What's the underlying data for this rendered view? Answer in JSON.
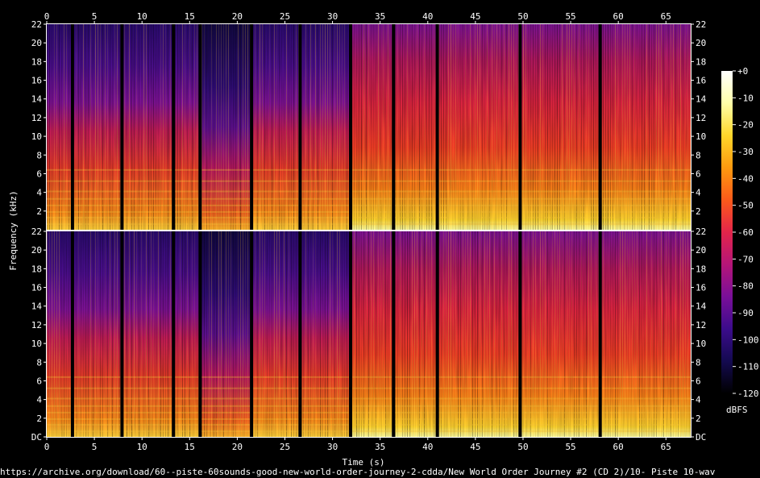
{
  "chart_data": {
    "type": "heatmap",
    "subtype": "spectrogram",
    "channels": 2,
    "xlabel": "Time (s)",
    "ylabel": "Frequency (kHz)",
    "x_ticks": [
      0,
      5,
      10,
      15,
      20,
      25,
      30,
      35,
      40,
      45,
      50,
      55,
      60,
      65
    ],
    "xlim": [
      0,
      67.6
    ],
    "y_ticks": [
      "DC",
      2,
      4,
      6,
      8,
      10,
      12,
      14,
      16,
      18,
      20,
      22
    ],
    "ylim": [
      0,
      22
    ],
    "colorbar": {
      "label": "dBFS",
      "ticks": [
        "+0",
        "-10",
        "-20",
        "-30",
        "-40",
        "-50",
        "-60",
        "-70",
        "-80",
        "-90",
        "-100",
        "-110",
        "-120"
      ],
      "range": [
        -120,
        0
      ],
      "colors": [
        "#000000",
        "#140a50",
        "#3c0c8c",
        "#7a0f99",
        "#b51578",
        "#e3254a",
        "#fb5a1a",
        "#fd9a0f",
        "#fed62a",
        "#ffffa8",
        "#ffffff"
      ]
    },
    "silence_gaps_s": [
      2.7,
      7.9,
      13.3,
      16.1,
      21.5,
      26.6,
      31.9,
      36.4,
      41.0,
      49.7,
      58.1
    ],
    "loud_section_start_s": 32
  },
  "source_url": "https://archive.org/download/60--piste-60sounds-good-new-world-order-journey-2-cdda/New World Order Journey #2 (CD 2)/10- Piste 10-wav"
}
